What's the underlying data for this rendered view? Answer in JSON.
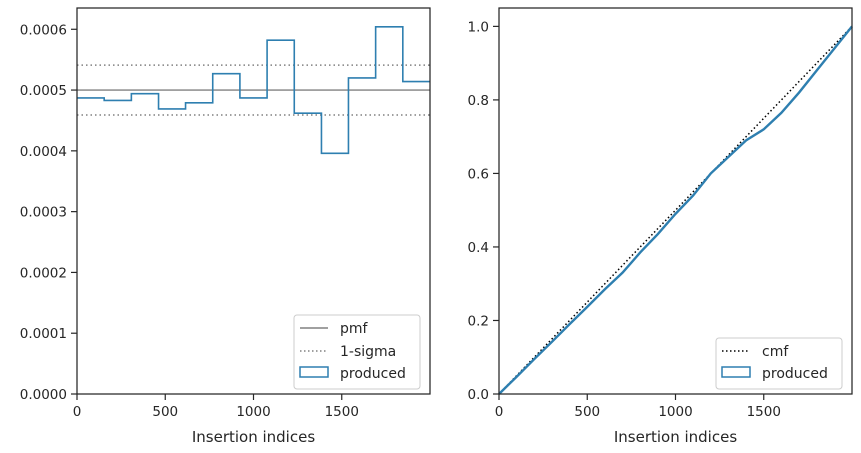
{
  "chart_data": [
    {
      "type": "line",
      "xlabel": "Insertion indices",
      "ylabel": "",
      "xlim": [
        0,
        2000
      ],
      "ylim": [
        0,
        0.000635
      ],
      "xticks": [
        0,
        500,
        1000,
        1500
      ],
      "yticks": [
        0,
        0.0001,
        0.0002,
        0.0003,
        0.0004,
        0.0005,
        0.0006
      ],
      "xtick_labels": [
        "0",
        "500",
        "1000",
        "1500"
      ],
      "ytick_labels": [
        "0.0000",
        "0.0001",
        "0.0002",
        "0.0003",
        "0.0004",
        "0.0005",
        "0.0006"
      ],
      "grid": false,
      "legend_position": "lower-right",
      "series": [
        {
          "name": "pmf",
          "style": "solid",
          "color": "#808080",
          "y": 0.0005
        },
        {
          "name": "1-sigma",
          "style": "dotted",
          "color": "#808080",
          "y": [
            0.000459,
            0.000541
          ]
        },
        {
          "name": "produced",
          "style": "step-histogram",
          "color": "#2e7fb0",
          "bin_edges": [
            0,
            154,
            308,
            462,
            615,
            769,
            923,
            1077,
            1231,
            1385,
            1538,
            1692,
            1846,
            2000
          ],
          "values": [
            0.000487,
            0.000483,
            0.000494,
            0.000469,
            0.000479,
            0.000527,
            0.000487,
            0.000582,
            0.000462,
            0.000396,
            0.00052,
            0.000604,
            0.000514
          ]
        }
      ]
    },
    {
      "type": "line",
      "xlabel": "Insertion indices",
      "ylabel": "",
      "xlim": [
        0,
        2000
      ],
      "ylim": [
        0,
        1.05
      ],
      "xticks": [
        0,
        500,
        1000,
        1500
      ],
      "yticks": [
        0,
        0.2,
        0.4,
        0.6,
        0.8,
        1.0
      ],
      "xtick_labels": [
        "0",
        "500",
        "1000",
        "1500"
      ],
      "ytick_labels": [
        "0.0",
        "0.2",
        "0.4",
        "0.6",
        "0.8",
        "1.0"
      ],
      "grid": false,
      "legend_position": "lower-right",
      "series": [
        {
          "name": "cmf",
          "style": "dotted",
          "color": "#000000",
          "x": [
            0,
            2000
          ],
          "y": [
            0,
            1
          ]
        },
        {
          "name": "produced",
          "style": "solid",
          "color": "#2e7fb0",
          "x": [
            0,
            100,
            200,
            300,
            400,
            500,
            600,
            700,
            800,
            900,
            1000,
            1100,
            1200,
            1300,
            1400,
            1500,
            1600,
            1700,
            1800,
            1900,
            2000
          ],
          "y": [
            0,
            0.047,
            0.095,
            0.142,
            0.19,
            0.237,
            0.285,
            0.33,
            0.385,
            0.435,
            0.49,
            0.54,
            0.6,
            0.645,
            0.69,
            0.72,
            0.765,
            0.82,
            0.88,
            0.94,
            1.0
          ]
        }
      ]
    }
  ]
}
